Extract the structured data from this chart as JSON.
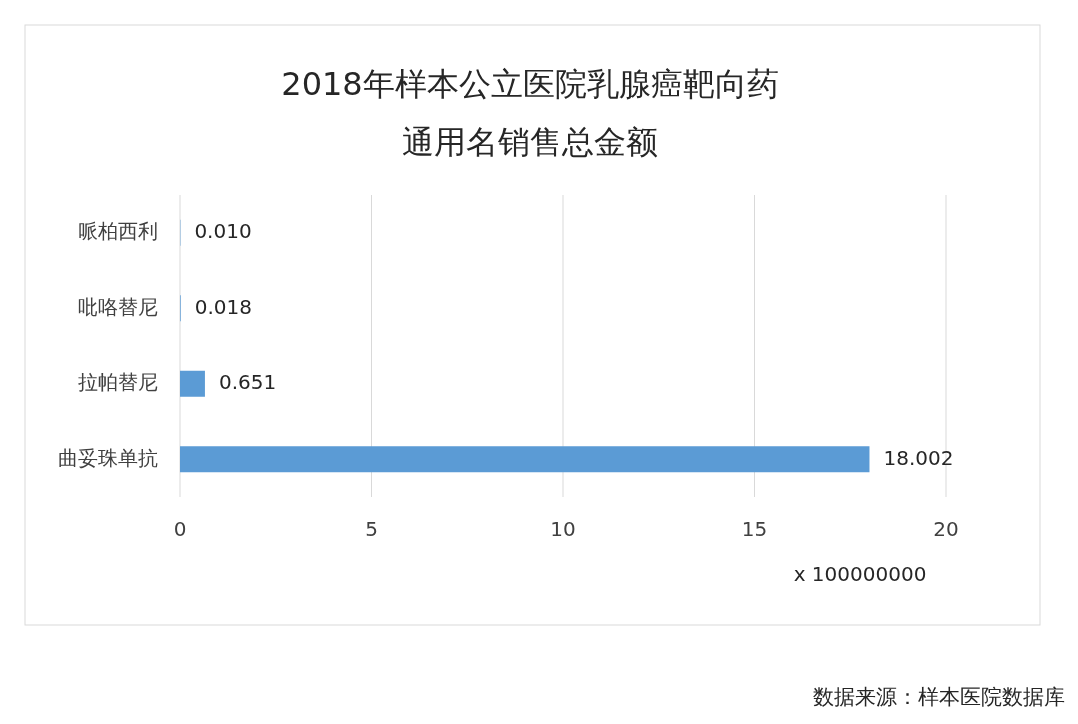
{
  "chart_data": {
    "type": "bar",
    "orientation": "horizontal",
    "title": "2018年样本公立医院乳腺癌靶向药通用名销售总金额",
    "categories": [
      "哌柏西利",
      "吡咯替尼",
      "拉帕替尼",
      "曲妥珠单抗"
    ],
    "values": [
      0.01,
      0.018,
      0.651,
      18.002
    ],
    "value_labels": [
      "0.010",
      "0.018",
      "0.651",
      "18.002"
    ],
    "color": "#5b9bd5",
    "xlim": [
      0,
      20
    ],
    "xticks": [
      0,
      5,
      10,
      15,
      20
    ],
    "xlabel": "x 100000000",
    "grid": "x",
    "annotations": [
      "数据来源：样本医院数据库"
    ]
  }
}
